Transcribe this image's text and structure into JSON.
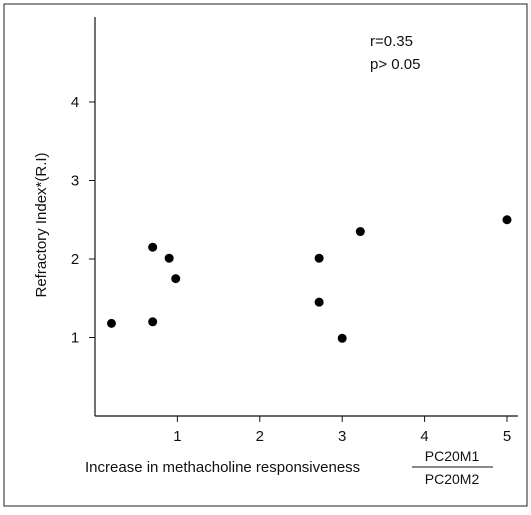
{
  "chart_data": {
    "type": "scatter",
    "title": "",
    "xlabel": "Increase in methacholine responsiveness",
    "x_fraction": {
      "numerator": "PC20M1",
      "denominator": "PC20M2"
    },
    "ylabel": "Refractory Index*(R.I)",
    "xlim": [
      0,
      5.1
    ],
    "ylim": [
      0,
      4.9
    ],
    "x_ticks": [
      "1",
      "2",
      "3",
      "4",
      "5"
    ],
    "y_ticks": [
      "1",
      "2",
      "3",
      "4"
    ],
    "grid": false,
    "annotations": [
      "r=0.35",
      "p> 0.05"
    ],
    "points": [
      {
        "x": 0.2,
        "y": 1.18
      },
      {
        "x": 0.7,
        "y": 2.15
      },
      {
        "x": 0.7,
        "y": 1.2
      },
      {
        "x": 0.9,
        "y": 2.01
      },
      {
        "x": 0.98,
        "y": 1.75
      },
      {
        "x": 2.72,
        "y": 2.01
      },
      {
        "x": 2.72,
        "y": 1.45
      },
      {
        "x": 3.0,
        "y": 0.99
      },
      {
        "x": 3.22,
        "y": 2.35
      },
      {
        "x": 5.0,
        "y": 2.5
      }
    ],
    "marker_color": "#000000"
  }
}
